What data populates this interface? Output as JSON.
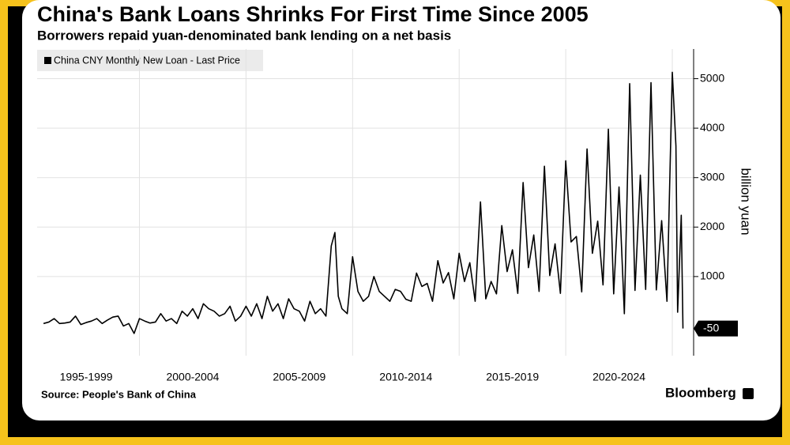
{
  "chart_data": {
    "type": "line",
    "title": "China's Bank Loans Shrinks For First Time Since 2005",
    "subtitle": "Borrowers repaid yuan-denominated bank lending on a net basis",
    "y_axis_label": "billion yuan",
    "source": "Source: People's Bank of China",
    "brand": "Bloomberg",
    "x": [
      1995.5,
      1995.75,
      1996,
      1996.25,
      1996.5,
      1996.75,
      1997,
      1997.25,
      1997.5,
      1997.75,
      1998,
      1998.25,
      1998.5,
      1998.75,
      1999,
      1999.25,
      1999.5,
      1999.75,
      2000,
      2000.25,
      2000.5,
      2000.75,
      2001,
      2001.25,
      2001.5,
      2001.75,
      2002,
      2002.25,
      2002.5,
      2002.75,
      2003,
      2003.25,
      2003.5,
      2003.75,
      2004,
      2004.25,
      2004.5,
      2004.75,
      2005,
      2005.25,
      2005.5,
      2005.75,
      2006,
      2006.25,
      2006.5,
      2006.75,
      2007,
      2007.25,
      2007.5,
      2007.75,
      2008,
      2008.25,
      2008.5,
      2008.75,
      2009,
      2009.17,
      2009.33,
      2009.5,
      2009.75,
      2010,
      2010.25,
      2010.5,
      2010.75,
      2011,
      2011.25,
      2011.5,
      2011.75,
      2012,
      2012.25,
      2012.5,
      2012.75,
      2013,
      2013.25,
      2013.5,
      2013.75,
      2014,
      2014.25,
      2014.5,
      2014.75,
      2015,
      2015.25,
      2015.5,
      2015.75,
      2016,
      2016.25,
      2016.5,
      2016.75,
      2017,
      2017.25,
      2017.5,
      2017.75,
      2018,
      2018.25,
      2018.5,
      2018.75,
      2019,
      2019.25,
      2019.5,
      2019.75,
      2020,
      2020.25,
      2020.5,
      2020.75,
      2021,
      2021.25,
      2021.5,
      2021.75,
      2022,
      2022.25,
      2022.5,
      2022.75,
      2023,
      2023.25,
      2023.5,
      2023.75,
      2024,
      2024.25,
      2024.5,
      2024.75,
      2025,
      2025.17,
      2025.25,
      2025.42,
      2025.5
    ],
    "series": [
      {
        "name": "China CNY Monthly New Loan - Last Price",
        "color": "#000000",
        "values": [
          50,
          80,
          150,
          50,
          60,
          80,
          200,
          30,
          70,
          100,
          150,
          50,
          120,
          180,
          200,
          0,
          50,
          -150,
          150,
          100,
          60,
          80,
          250,
          100,
          150,
          50,
          300,
          200,
          350,
          150,
          450,
          350,
          300,
          200,
          250,
          400,
          100,
          200,
          400,
          200,
          450,
          150,
          600,
          300,
          450,
          150,
          550,
          350,
          300,
          100,
          500,
          250,
          350,
          200,
          1620,
          1890,
          600,
          350,
          250,
          1400,
          700,
          500,
          600,
          1000,
          700,
          600,
          500,
          740,
          700,
          540,
          500,
          1070,
          800,
          860,
          500,
          1320,
          870,
          1080,
          550,
          1470,
          900,
          1280,
          500,
          2510,
          550,
          900,
          650,
          2030,
          1100,
          1540,
          660,
          2900,
          1180,
          1840,
          700,
          3230,
          1020,
          1660,
          660,
          3340,
          1700,
          1810,
          690,
          3580,
          1470,
          2120,
          830,
          3980,
          650,
          2810,
          250,
          4900,
          720,
          3050,
          740,
          4920,
          730,
          2130,
          500,
          5130,
          3640,
          280,
          2240,
          -50
        ]
      }
    ],
    "xlim": [
      1995.2,
      2026.0
    ],
    "xticks": [
      {
        "value": 1997.5,
        "label": "1995-1999"
      },
      {
        "value": 2002.5,
        "label": "2000-2004"
      },
      {
        "value": 2007.5,
        "label": "2005-2009"
      },
      {
        "value": 2012.5,
        "label": "2010-2014"
      },
      {
        "value": 2017.5,
        "label": "2015-2019"
      },
      {
        "value": 2022.5,
        "label": "2020-2024"
      }
    ],
    "ylim": [
      -600,
      5600
    ],
    "yticks": [
      1000,
      2000,
      3000,
      4000,
      5000
    ],
    "grid": true
  }
}
